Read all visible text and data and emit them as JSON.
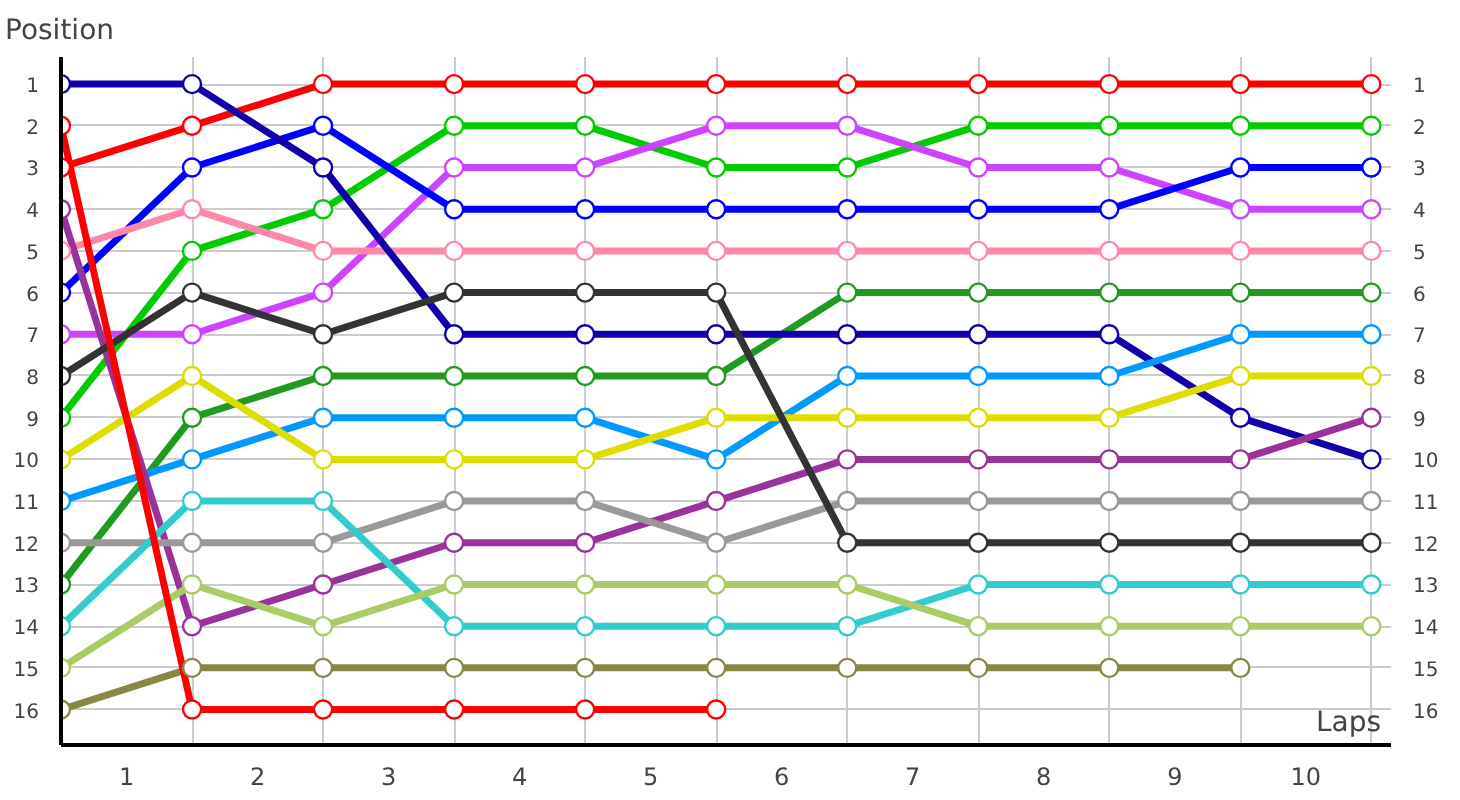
{
  "chart_data": {
    "type": "line",
    "ylabel": "Position",
    "xlabel": "Laps",
    "x": [
      0,
      1,
      2,
      3,
      4,
      5,
      6,
      7,
      8,
      9,
      10
    ],
    "xlim": [
      0,
      10.15
    ],
    "ylim": [
      16.85,
      0.35
    ],
    "xticks": [
      {
        "value": 0,
        "label": null
      },
      {
        "value": 0.5,
        "label": "1"
      },
      {
        "value": 1,
        "label": null
      },
      {
        "value": 1.5,
        "label": "2"
      },
      {
        "value": 2,
        "label": null
      },
      {
        "value": 2.5,
        "label": "3"
      },
      {
        "value": 3,
        "label": null
      },
      {
        "value": 3.5,
        "label": "4"
      },
      {
        "value": 4,
        "label": null
      },
      {
        "value": 4.5,
        "label": "5"
      },
      {
        "value": 5,
        "label": null
      },
      {
        "value": 5.5,
        "label": "6"
      },
      {
        "value": 6,
        "label": null
      },
      {
        "value": 6.5,
        "label": "7"
      },
      {
        "value": 7,
        "label": null
      },
      {
        "value": 7.5,
        "label": "8"
      },
      {
        "value": 8,
        "label": null
      },
      {
        "value": 8.5,
        "label": "9"
      },
      {
        "value": 9,
        "label": null
      },
      {
        "value": 9.5,
        "label": "10"
      },
      {
        "value": 10,
        "label": null
      }
    ],
    "yticks": [
      1,
      2,
      3,
      4,
      5,
      6,
      7,
      8,
      9,
      10,
      11,
      12,
      13,
      14,
      15,
      16
    ],
    "y2lim": [
      16.85,
      0.35
    ],
    "y2ticks": [
      1,
      2,
      3,
      4,
      5,
      6,
      7,
      8,
      9,
      10,
      11,
      12,
      13,
      14,
      15,
      16
    ],
    "grid": true,
    "marker": "circle",
    "line_style": "solid",
    "series": [
      {
        "color": "#ff0000",
        "values": [
          3,
          2,
          1,
          1,
          1,
          1,
          1,
          1,
          1,
          1,
          1
        ]
      },
      {
        "color": "#00cc00",
        "values": [
          9,
          5,
          4,
          2,
          2,
          3,
          3,
          2,
          2,
          2,
          2
        ]
      },
      {
        "color": "#cc44ff",
        "values": [
          7,
          7,
          6,
          3,
          3,
          2,
          2,
          3,
          3,
          4,
          4
        ]
      },
      {
        "color": "#0000ff",
        "values": [
          6,
          3,
          2,
          4,
          4,
          4,
          4,
          4,
          4,
          3,
          3
        ]
      },
      {
        "color": "#ff88aa",
        "values": [
          5,
          4,
          5,
          5,
          5,
          5,
          5,
          5,
          5,
          5,
          5
        ]
      },
      {
        "color": "#229922",
        "values": [
          13,
          9,
          8,
          8,
          8,
          8,
          6,
          6,
          6,
          6,
          6
        ]
      },
      {
        "color": "#1100aa",
        "values": [
          1,
          1,
          3,
          7,
          7,
          7,
          7,
          7,
          7,
          9,
          10
        ]
      },
      {
        "color": "#0099ff",
        "values": [
          11,
          10,
          9,
          9,
          9,
          10,
          8,
          8,
          8,
          7,
          7
        ]
      },
      {
        "color": "#dddd00",
        "values": [
          10,
          8,
          10,
          10,
          10,
          9,
          9,
          9,
          9,
          8,
          8
        ]
      },
      {
        "color": "#993399",
        "values": [
          4,
          14,
          13,
          12,
          12,
          11,
          10,
          10,
          10,
          10,
          9
        ]
      },
      {
        "color": "#999999",
        "values": [
          12,
          12,
          12,
          11,
          11,
          12,
          11,
          11,
          11,
          11,
          11
        ]
      },
      {
        "color": "#333333",
        "values": [
          8,
          6,
          7,
          6,
          6,
          6,
          12,
          12,
          12,
          12,
          12
        ]
      },
      {
        "color": "#33cccc",
        "values": [
          14,
          11,
          11,
          14,
          14,
          14,
          14,
          13,
          13,
          13,
          13
        ]
      },
      {
        "color": "#aacc66",
        "values": [
          15,
          13,
          14,
          13,
          13,
          13,
          13,
          14,
          14,
          14,
          14
        ]
      },
      {
        "color": "#888844",
        "values": [
          16,
          15,
          15,
          15,
          15,
          15,
          15,
          15,
          15,
          15,
          null
        ]
      },
      {
        "color": "#ff0000",
        "values": [
          2,
          16,
          16,
          16,
          16,
          16,
          null,
          null,
          null,
          null,
          null
        ]
      }
    ]
  }
}
